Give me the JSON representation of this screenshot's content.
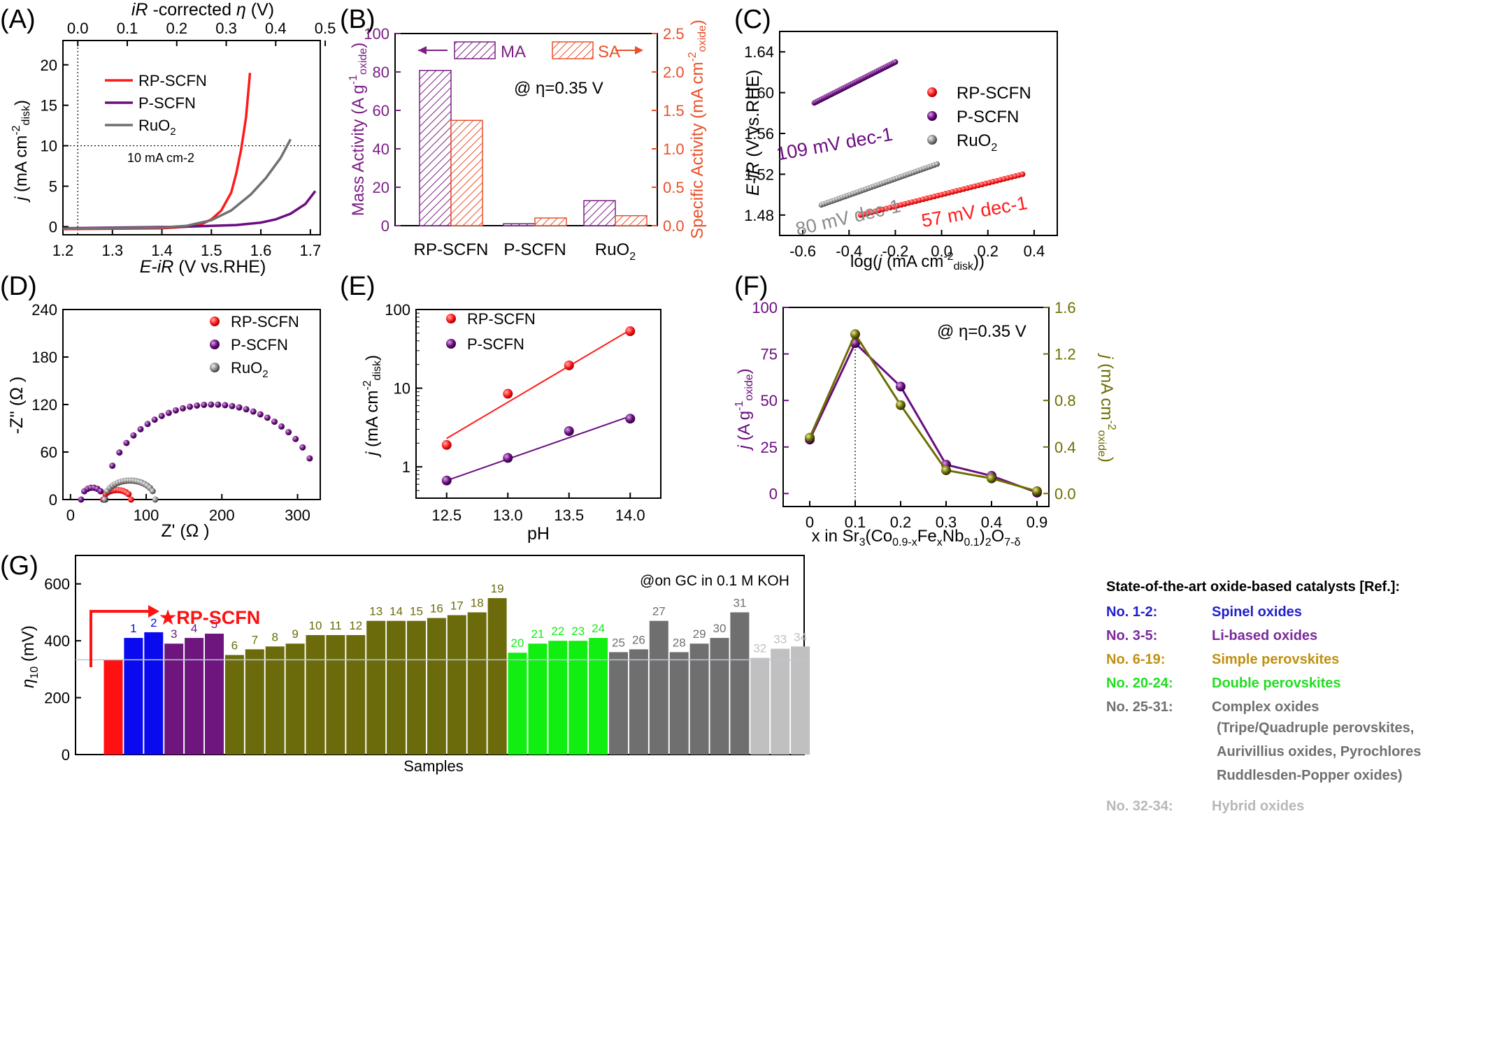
{
  "panels": {
    "A": {
      "letter": "(A)",
      "xlabel": "E-iR (V vs.RHE)",
      "top_label": "iR -corrected η (V)",
      "ylabel": "j (mA cm-2 disk)",
      "annotation": "10 mA cm-2"
    },
    "B": {
      "letter": "(B)",
      "annotation": "@ η=0.35 V"
    },
    "C": {
      "letter": "(C)",
      "xlabel": "log(j (mA cm-2 disk))",
      "ylabel": "E-iR (V vs.RHE)"
    },
    "D": {
      "letter": "(D)",
      "xlabel": "Z' (Ω )",
      "ylabel": "-Z'' (Ω )"
    },
    "E": {
      "letter": "(E)",
      "xlabel": "pH",
      "ylabel": "j (mA cm-2 disk)"
    },
    "F": {
      "letter": "(F)",
      "annotation": "@ η=0.35 V",
      "xlabel": "x in Sr3(Co0.9-xFexNb0.1)2O7-δ"
    },
    "G": {
      "letter": "(G)",
      "annotation": "@on GC in 0.1 M KOH",
      "xlabel": "Samples",
      "ylabel": "η10 (mV)",
      "callout": "★RP-SCFN"
    }
  },
  "chart_data": [
    {
      "panel": "A",
      "type": "line",
      "x_range": [
        1.2,
        1.72
      ],
      "ylim": [
        -1,
        23
      ],
      "xticks": [
        1.2,
        1.3,
        1.4,
        1.5,
        1.6,
        1.7
      ],
      "yticks": [
        0,
        5,
        10,
        15,
        20
      ],
      "top_xticks": [
        "0.0",
        "0.1",
        "0.2",
        "0.3",
        "0.4",
        "0.5"
      ],
      "series": [
        {
          "name": "RP-SCFN",
          "color": "#ff1a1a",
          "x": [
            1.2,
            1.4,
            1.45,
            1.48,
            1.5,
            1.52,
            1.54,
            1.55,
            1.56,
            1.57,
            1.578
          ],
          "y": [
            -0.3,
            -0.2,
            0.0,
            0.3,
            0.9,
            2.0,
            4.2,
            6.5,
            9.5,
            13.5,
            19.0
          ]
        },
        {
          "name": "P-SCFN",
          "color": "#6b0d80",
          "x": [
            1.2,
            1.45,
            1.55,
            1.6,
            1.63,
            1.66,
            1.69,
            1.71
          ],
          "y": [
            -0.2,
            0.0,
            0.2,
            0.5,
            0.9,
            1.6,
            2.8,
            4.4
          ]
        },
        {
          "name": "RuO2",
          "color": "#707070",
          "x": [
            1.2,
            1.4,
            1.45,
            1.5,
            1.54,
            1.58,
            1.61,
            1.64,
            1.66
          ],
          "y": [
            -0.25,
            -0.1,
            0.1,
            0.8,
            2.0,
            4.0,
            6.0,
            8.5,
            10.8
          ]
        }
      ]
    },
    {
      "panel": "B",
      "type": "bar",
      "categories": [
        "RP-SCFN",
        "P-SCFN",
        "RuO2"
      ],
      "ylim": [
        0,
        100
      ],
      "y2lim": [
        0,
        2.5
      ],
      "yticks": [
        0,
        20,
        40,
        60,
        80,
        100
      ],
      "y2ticks": [
        "0.0",
        "0.5",
        "1.0",
        "1.5",
        "2.0",
        "2.5"
      ],
      "ylabel": "Mass Activity (A g-1 oxide)",
      "y2label": "Specific Activity (mA cm-2 oxide)",
      "series": [
        {
          "name": "MA",
          "axis": "left",
          "color": "#7a1f85",
          "values": [
            80.8,
            1.0,
            13.0
          ]
        },
        {
          "name": "SA",
          "axis": "right",
          "color": "#e8502a",
          "values": [
            1.37,
            0.1,
            0.13
          ]
        }
      ]
    },
    {
      "panel": "C",
      "type": "scatter",
      "xlim": [
        -0.7,
        0.5
      ],
      "ylim": [
        1.46,
        1.66
      ],
      "xticks": [
        -0.6,
        -0.4,
        -0.2,
        0.0,
        0.2,
        0.4
      ],
      "yticks": [
        "1.48",
        "1.52",
        "1.56",
        "1.60",
        "1.64"
      ],
      "series": [
        {
          "name": "RP-SCFN",
          "color": "#ff1a1a",
          "x0": -0.35,
          "x1": 0.35,
          "y0": 1.48,
          "y1": 1.52,
          "tafel": "57 mV dec-1"
        },
        {
          "name": "P-SCFN",
          "color": "#6b0d80",
          "x0": -0.55,
          "x1": -0.2,
          "y0": 1.59,
          "y1": 1.63,
          "tafel": "109 mV dec-1"
        },
        {
          "name": "RuO2",
          "color": "#8a8a8a",
          "x0": -0.52,
          "x1": -0.02,
          "y0": 1.49,
          "y1": 1.53,
          "tafel": "80 mV dec-1"
        }
      ]
    },
    {
      "panel": "D",
      "type": "scatter",
      "xlim": [
        -10,
        330
      ],
      "ylim": [
        0,
        240
      ],
      "xticks": [
        0,
        100,
        200,
        300
      ],
      "yticks": [
        0,
        60,
        120,
        180,
        240
      ],
      "series": [
        {
          "name": "RP-SCFN",
          "color": "#ff1a1a",
          "arcs": [
            {
              "x0": 43,
              "x1": 80,
              "h": 12,
              "n": 12
            }
          ]
        },
        {
          "name": "P-SCFN",
          "color": "#6b0d80",
          "arcs": [
            {
              "x0": 14,
              "x1": 44,
              "h": 15,
              "n": 8
            },
            {
              "x0": 46,
              "x1": 330,
              "h": 120,
              "n": 30,
              "end": 316
            }
          ]
        },
        {
          "name": "RuO2",
          "color": "#8a8a8a",
          "arcs": [
            {
              "x0": 45,
              "x1": 112,
              "h": 24,
              "n": 20
            }
          ]
        }
      ]
    },
    {
      "panel": "E",
      "type": "scatter",
      "xlim": [
        12.25,
        14.25
      ],
      "ylog": true,
      "ylim": [
        0.4,
        100
      ],
      "xticks": [
        "12.5",
        "13.0",
        "13.5",
        "14.0"
      ],
      "yticks": [
        1,
        10,
        100
      ],
      "series": [
        {
          "name": "RP-SCFN",
          "color": "#ff1a1a",
          "x": [
            12.5,
            13.0,
            13.5,
            14.0
          ],
          "y": [
            1.9,
            8.5,
            19.5,
            53
          ],
          "fit": [
            2.3,
            55
          ]
        },
        {
          "name": "P-SCFN",
          "color": "#6b0d80",
          "x": [
            12.5,
            13.0,
            13.5,
            14.0
          ],
          "y": [
            0.67,
            1.3,
            2.85,
            4.1
          ],
          "fit": [
            0.67,
            4.4
          ]
        }
      ]
    },
    {
      "panel": "F",
      "type": "line",
      "categories": [
        "0",
        "0.1",
        "0.2",
        "0.3",
        "0.4",
        "0.9"
      ],
      "ylim": [
        -7,
        100
      ],
      "y2lim": [
        -0.112,
        1.6
      ],
      "yticks": [
        0,
        25,
        50,
        75,
        100
      ],
      "y2ticks": [
        "0.0",
        "0.4",
        "0.8",
        "1.2",
        "1.6"
      ],
      "ylabel": "j (A g-1 oxide)",
      "y2label": "j (mA cm-2 oxide)",
      "series": [
        {
          "name": "mass",
          "axis": "left",
          "color": "#6b0d80",
          "values": [
            29,
            80.8,
            57.5,
            15.5,
            9.5,
            0.5
          ]
        },
        {
          "name": "specific",
          "axis": "right",
          "color": "#6e6e00",
          "values": [
            0.48,
            1.37,
            0.76,
            0.2,
            0.13,
            0.02
          ]
        }
      ]
    },
    {
      "panel": "G",
      "type": "bar",
      "ylim": [
        0,
        700
      ],
      "yticks": [
        0,
        200,
        400,
        600
      ],
      "labels": [
        "",
        "1",
        "2",
        "3",
        "4",
        "5",
        "6",
        "7",
        "8",
        "9",
        "10",
        "11",
        "12",
        "13",
        "14",
        "15",
        "16",
        "17",
        "18",
        "19",
        "20",
        "21",
        "22",
        "23",
        "24",
        "25",
        "26",
        "27",
        "28",
        "29",
        "30",
        "31",
        "32",
        "33",
        "34"
      ],
      "values": [
        333,
        410,
        430,
        390,
        410,
        425,
        350,
        370,
        380,
        390,
        420,
        420,
        420,
        470,
        470,
        470,
        480,
        490,
        500,
        550,
        358,
        390,
        400,
        400,
        410,
        360,
        370,
        470,
        360,
        390,
        410,
        500,
        340,
        372,
        380
      ],
      "colors": [
        "#ff1111",
        "#0a0aee",
        "#0a0aee",
        "#6e167e",
        "#6e167e",
        "#6e167e",
        "#6b6b0b",
        "#6b6b0b",
        "#6b6b0b",
        "#6b6b0b",
        "#6b6b0b",
        "#6b6b0b",
        "#6b6b0b",
        "#6b6b0b",
        "#6b6b0b",
        "#6b6b0b",
        "#6b6b0b",
        "#6b6b0b",
        "#6b6b0b",
        "#6b6b0b",
        "#11ee11",
        "#11ee11",
        "#11ee11",
        "#11ee11",
        "#11ee11",
        "#6f6f6f",
        "#6f6f6f",
        "#6f6f6f",
        "#6f6f6f",
        "#6f6f6f",
        "#6f6f6f",
        "#6f6f6f",
        "#c0c0c0",
        "#c0c0c0",
        "#c0c0c0"
      ],
      "ref_line": 333
    }
  ],
  "legend_G": {
    "title": "State-of-the-art oxide-based catalysts [Ref.]:",
    "rows": [
      {
        "no": "No. 1-2:",
        "name": "Spinel oxides",
        "color": "#1f1fcc"
      },
      {
        "no": "No. 3-5:",
        "name": "Li-based  oxides",
        "color": "#7a2a9a"
      },
      {
        "no": "No. 6-19:",
        "name": "Simple perovskites",
        "color": "#c09010"
      },
      {
        "no": "No. 20-24:",
        "name": "Double perovskites",
        "color": "#22dd22"
      },
      {
        "no": "No. 25-31:",
        "name": "Complex oxides",
        "color": "#707070"
      },
      {
        "no": "",
        "name": "(Tripe/Quadruple perovskites,",
        "color": "#707070"
      },
      {
        "no": "",
        "name": "Aurivillius oxides, Pyrochlores",
        "color": "#707070"
      },
      {
        "no": "",
        "name": "Ruddlesden-Popper   oxides)",
        "color": "#707070"
      },
      {
        "no": "No. 32-34:",
        "name": "Hybrid oxides",
        "color": "#b8b8b8"
      }
    ]
  }
}
